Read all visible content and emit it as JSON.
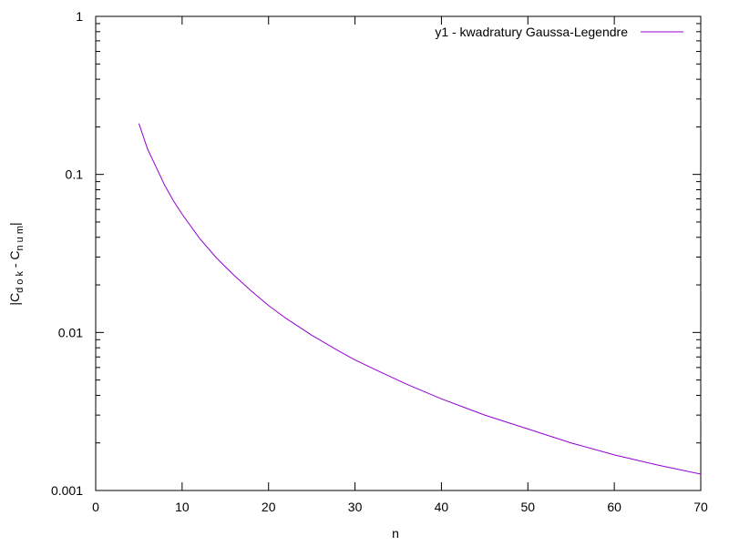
{
  "chart_data": {
    "type": "line",
    "title": "",
    "xlabel": "n",
    "ylabel": {
      "prefix": "|C",
      "sub1": "d o k",
      "middle": " - C",
      "sub2": "n u m",
      "suffix": "|"
    },
    "xlim": [
      0,
      70
    ],
    "ylim": [
      0.001,
      1
    ],
    "yscale": "log",
    "grid": false,
    "legend_position": "top-right",
    "x_ticks": [
      0,
      10,
      20,
      30,
      40,
      50,
      60,
      70
    ],
    "x_tick_labels": [
      "0",
      "10",
      "20",
      "30",
      "40",
      "50",
      "60",
      "70"
    ],
    "y_ticks": [
      0.001,
      0.01,
      0.1,
      1
    ],
    "y_tick_labels": [
      "0.001",
      "0.01",
      "0.1",
      "1"
    ],
    "series": [
      {
        "name": "y1 - kwadratury Gaussa-Legendre",
        "color": "#9400d3",
        "x": [
          5,
          6,
          7,
          8,
          9,
          10,
          12,
          14,
          16,
          18,
          20,
          22,
          25,
          28,
          30,
          33,
          36,
          40,
          45,
          50,
          55,
          60,
          65,
          70
        ],
        "y": [
          0.21,
          0.145,
          0.111,
          0.085,
          0.068,
          0.056,
          0.0395,
          0.0295,
          0.023,
          0.0183,
          0.0148,
          0.0123,
          0.0096,
          0.0077,
          0.0067,
          0.0056,
          0.0047,
          0.0038,
          0.003,
          0.00245,
          0.002,
          0.00168,
          0.00145,
          0.00127
        ]
      }
    ]
  }
}
